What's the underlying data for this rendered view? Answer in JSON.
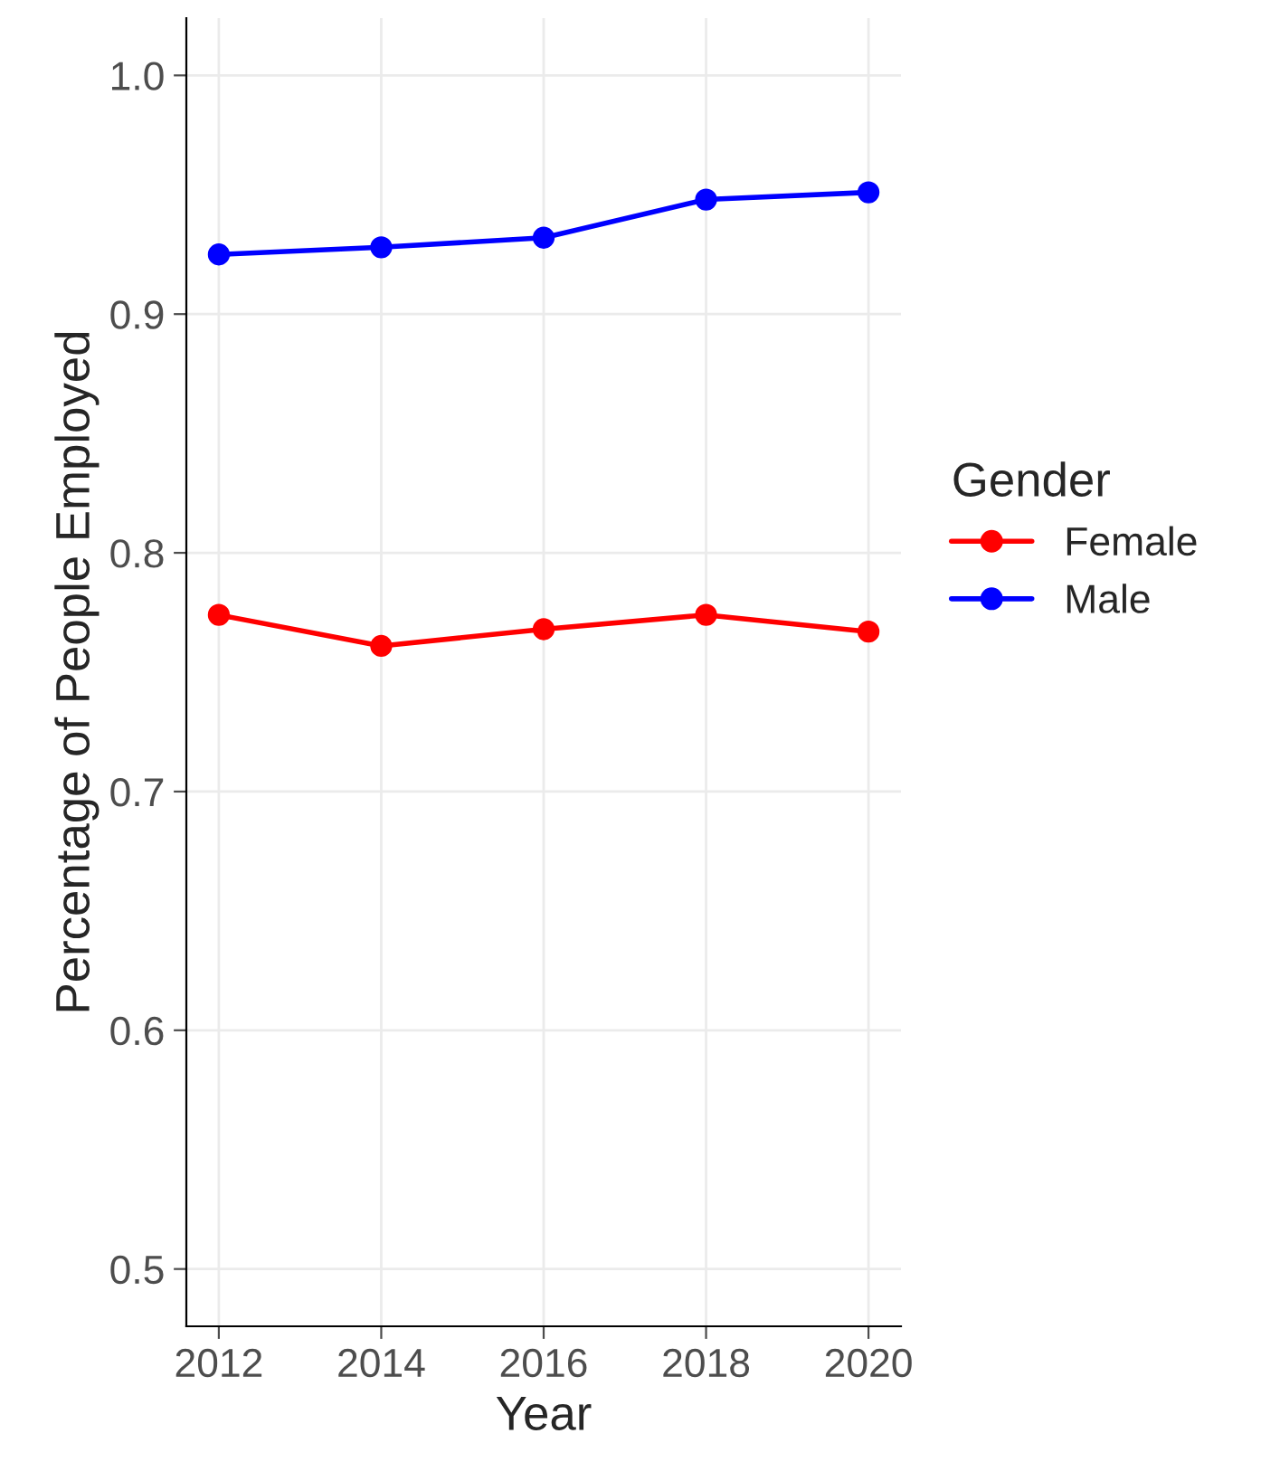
{
  "chart_data": {
    "type": "line",
    "xlabel": "Year",
    "ylabel": "Percentage of People Employed",
    "legend_title": "Gender",
    "x": [
      2012,
      2014,
      2016,
      2018,
      2020
    ],
    "series": [
      {
        "name": "Female",
        "color": "#ff0000",
        "values": [
          0.774,
          0.761,
          0.768,
          0.774,
          0.767
        ]
      },
      {
        "name": "Male",
        "color": "#0000ff",
        "values": [
          0.925,
          0.928,
          0.932,
          0.948,
          0.951
        ]
      }
    ],
    "xlim": [
      2011.6,
      2020.4
    ],
    "xticks": [
      2012,
      2014,
      2016,
      2018,
      2020
    ],
    "ylim": [
      0.476,
      1.024
    ],
    "yticks": [
      0.5,
      0.6,
      0.7,
      0.8,
      0.9,
      {
        "value": 1.0,
        "label": "1.0"
      }
    ],
    "grid": true,
    "legend": "right",
    "marker": "circle",
    "line_style": "solid"
  }
}
